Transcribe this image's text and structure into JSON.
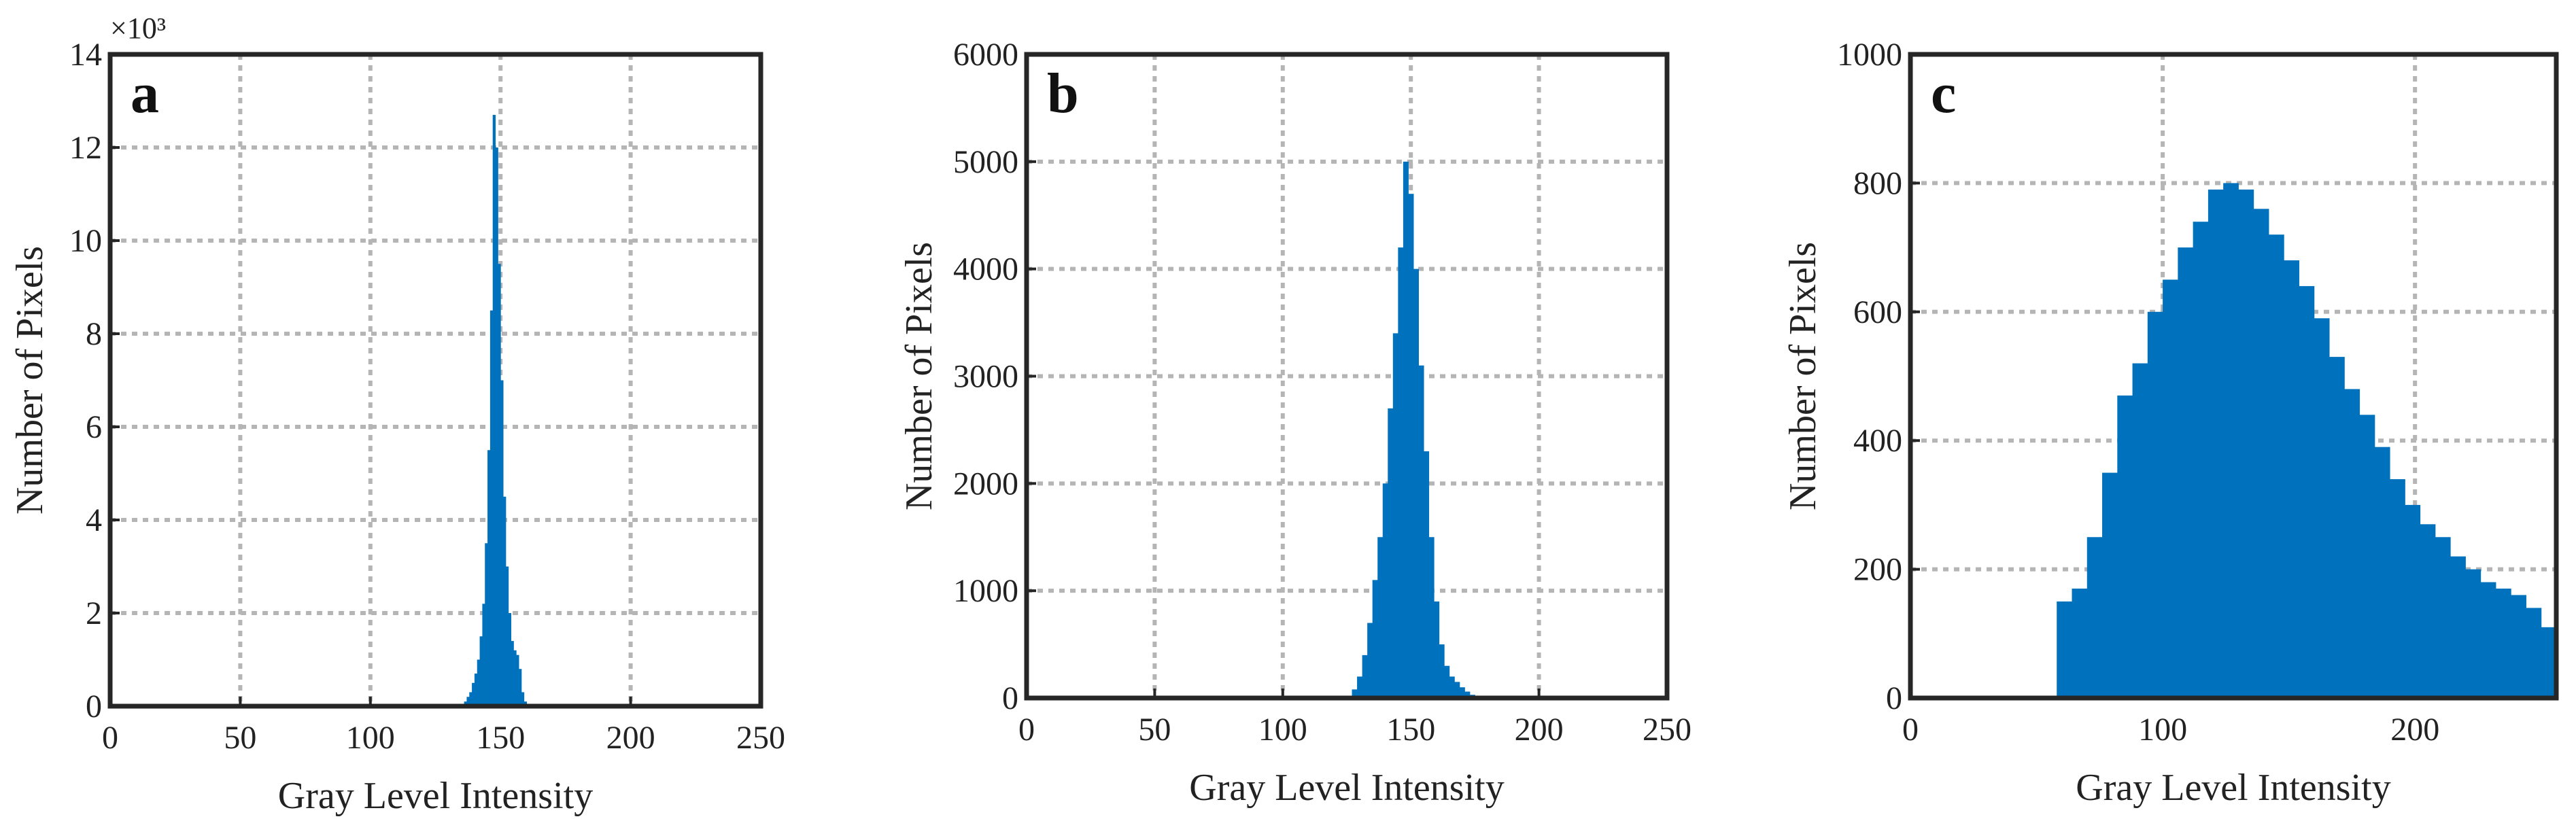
{
  "chart_data": [
    {
      "type": "histogram",
      "panel_label": "a",
      "xlabel": "Gray Level Intensity",
      "ylabel": "Number of Pixels",
      "y_exponent_label": "×10³",
      "color": "#0072bd",
      "grid": true,
      "xlim": [
        0,
        250
      ],
      "xticks": [
        0,
        50,
        100,
        150,
        200,
        250
      ],
      "ylim": [
        0,
        14
      ],
      "yticks": [
        0,
        2,
        4,
        6,
        8,
        10,
        12,
        14
      ],
      "bins": [
        136,
        137,
        138,
        139,
        140,
        141,
        142,
        143,
        144,
        145,
        146,
        147,
        148,
        149,
        150,
        151,
        152,
        153,
        154,
        155,
        156,
        157,
        158,
        159,
        160
      ],
      "values": [
        0.1,
        0.2,
        0.3,
        0.5,
        0.7,
        1.0,
        1.5,
        2.2,
        3.5,
        5.5,
        8.5,
        12.7,
        12.0,
        9.5,
        7.0,
        4.5,
        3.0,
        2.0,
        1.4,
        1.2,
        1.1,
        0.8,
        0.3,
        0.1
      ]
    },
    {
      "type": "histogram",
      "panel_label": "b",
      "xlabel": "Gray Level Intensity",
      "ylabel": "Number of Pixels",
      "color": "#0072bd",
      "grid": true,
      "xlim": [
        0,
        250
      ],
      "xticks": [
        0,
        50,
        100,
        150,
        200,
        250
      ],
      "ylim": [
        0,
        6000
      ],
      "yticks": [
        0,
        1000,
        2000,
        3000,
        4000,
        5000,
        6000
      ],
      "bins": [
        127,
        129,
        131,
        133,
        135,
        137,
        139,
        141,
        143,
        145,
        147,
        149,
        151,
        153,
        155,
        157,
        159,
        161,
        163,
        165,
        167,
        169,
        171,
        173,
        175,
        177
      ],
      "values": [
        80,
        200,
        400,
        700,
        1100,
        1500,
        2000,
        2700,
        3400,
        4200,
        5000,
        4700,
        4000,
        3100,
        2300,
        1500,
        900,
        500,
        300,
        200,
        150,
        100,
        60,
        30,
        10
      ]
    },
    {
      "type": "histogram",
      "panel_label": "c",
      "xlabel": "Gray Level Intensity",
      "ylabel": "Number of Pixels",
      "color": "#0072bd",
      "grid": true,
      "xlim": [
        0,
        256
      ],
      "xticks": [
        0,
        100,
        200
      ],
      "ylim": [
        0,
        1000
      ],
      "yticks": [
        0,
        200,
        400,
        600,
        800,
        1000
      ],
      "bins": [
        58,
        64,
        70,
        76,
        82,
        88,
        94,
        100,
        106,
        112,
        118,
        124,
        130,
        136,
        142,
        148,
        154,
        160,
        166,
        172,
        178,
        184,
        190,
        196,
        202,
        208,
        214,
        220,
        226,
        232,
        238,
        244,
        250,
        256
      ],
      "values": [
        150,
        170,
        250,
        350,
        470,
        520,
        600,
        650,
        700,
        740,
        790,
        800,
        790,
        760,
        720,
        680,
        640,
        590,
        530,
        480,
        440,
        390,
        340,
        300,
        270,
        250,
        220,
        200,
        180,
        170,
        160,
        140,
        110
      ]
    }
  ]
}
